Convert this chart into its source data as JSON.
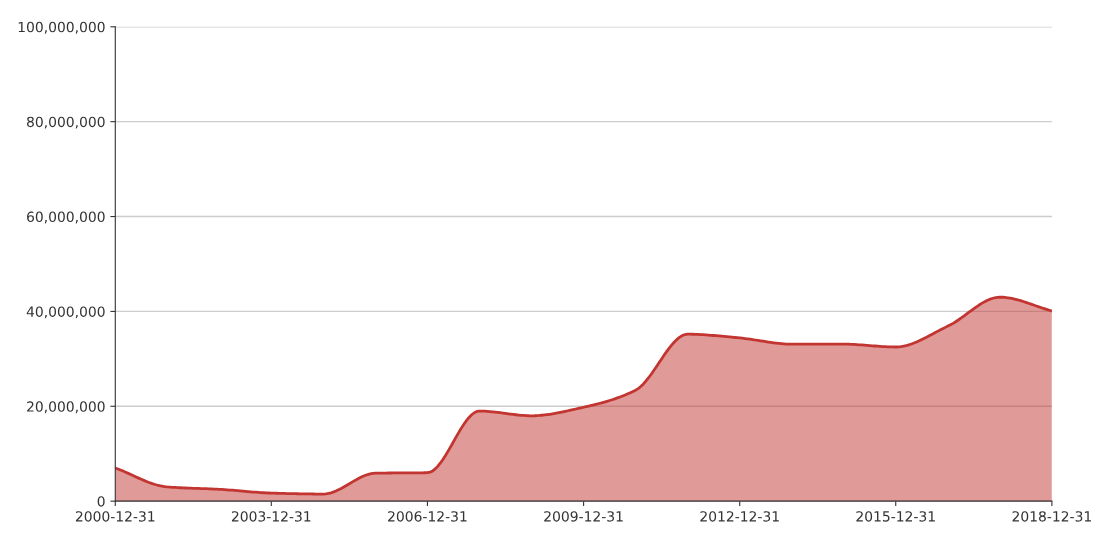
{
  "chart_data": {
    "type": "area",
    "x": [
      "2000-12-31",
      "2001-12-31",
      "2002-12-31",
      "2003-12-31",
      "2004-12-31",
      "2005-12-31",
      "2006-12-31",
      "2007-12-31",
      "2008-12-31",
      "2009-12-31",
      "2010-12-31",
      "2011-12-31",
      "2012-12-31",
      "2013-12-31",
      "2014-12-31",
      "2015-12-31",
      "2016-12-31",
      "2017-12-31",
      "2018-12-31"
    ],
    "series": [
      {
        "color": "#c23531",
        "values": [
          7000000,
          3000000,
          2500000,
          1700000,
          1500000,
          5900000,
          6000000,
          19000000,
          18000000,
          19800000,
          23400000,
          35200000,
          34400000,
          33100000,
          33100000,
          32500000,
          36900000,
          43000000,
          40100000
        ]
      }
    ],
    "xlim": [
      "2000-12-31",
      "2018-12-31"
    ],
    "xticks": [
      "2000-12-31",
      "2003-12-31",
      "2006-12-31",
      "2009-12-31",
      "2012-12-31",
      "2015-12-31",
      "2018-12-31"
    ],
    "ylim": [
      0,
      100000000
    ],
    "yticks": [
      {
        "value": 0,
        "label": "0"
      },
      {
        "value": 20000000,
        "label": "20,000,000"
      },
      {
        "value": 40000000,
        "label": "40,000,000"
      },
      {
        "value": 60000000,
        "label": "60,000,000"
      },
      {
        "value": 80000000,
        "label": "80,000,000"
      },
      {
        "value": 100000000,
        "label": "100,000,000"
      }
    ],
    "grid": "y"
  }
}
